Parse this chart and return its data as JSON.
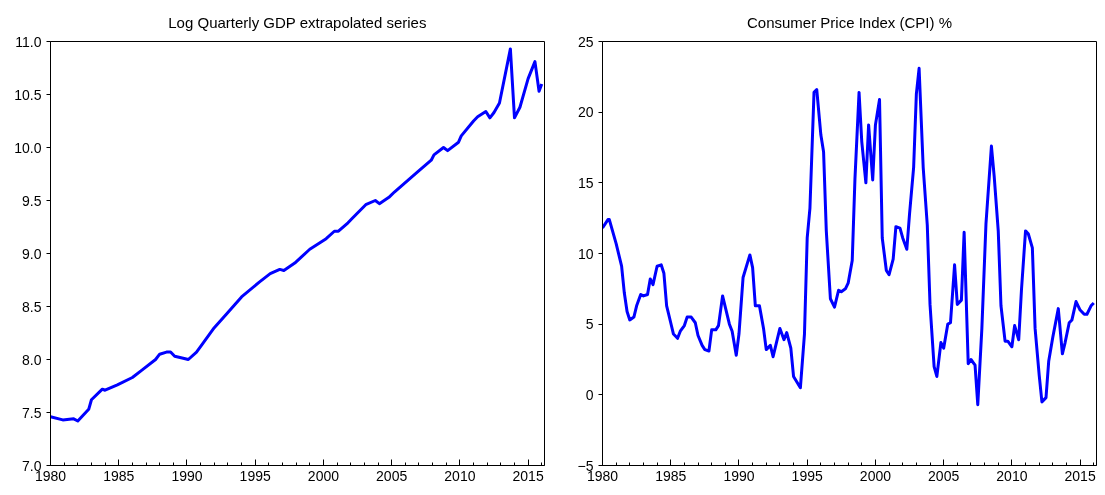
{
  "chart_data": [
    {
      "type": "line",
      "title": "Log Quarterly GDP extrapolated series",
      "grid": false,
      "marker": "none",
      "line_style": "solid",
      "xlim": [
        1980,
        2016.2
      ],
      "xticks": [
        1980,
        1985,
        1990,
        1995,
        2000,
        2005,
        2010,
        2015
      ],
      "ylim": [
        7.0,
        11.0
      ],
      "yticks": [
        {
          "value": 7.0,
          "label": "7.0"
        },
        7.5,
        {
          "value": 8.0,
          "label": "8.0"
        },
        8.5,
        {
          "value": 9.0,
          "label": "9.0"
        },
        9.5,
        {
          "value": 10.0,
          "label": "10.0"
        },
        10.5,
        {
          "value": 11.0,
          "label": "11.0"
        }
      ],
      "series": [
        {
          "color": "#0000ff",
          "x": [
            1980.0,
            1980.9,
            1981.7,
            1982.0,
            1982.8,
            1983.0,
            1983.8,
            1984.0,
            1984.9,
            1986.0,
            1986.7,
            1987.7,
            1988.0,
            1988.5,
            1988.8,
            1989.1,
            1989.8,
            1990.1,
            1990.7,
            1991.1,
            1992.0,
            1992.9,
            1994.0,
            1995.3,
            1996.1,
            1996.8,
            1997.1,
            1997.9,
            1999.0,
            2000.2,
            2000.8,
            2001.1,
            2001.8,
            2002.1,
            2003.1,
            2003.8,
            2004.1,
            2004.8,
            2005.2,
            2006.9,
            2007.9,
            2008.1,
            2008.8,
            2009.1,
            2009.9,
            2010.1,
            2011.0,
            2011.3,
            2011.9,
            2012.2,
            2012.5,
            2012.9,
            2013.7,
            2014.0,
            2014.4,
            2015.0,
            2015.5,
            2015.8,
            2016.0
          ],
          "values": [
            7.46,
            7.43,
            7.44,
            7.42,
            7.53,
            7.62,
            7.72,
            7.71,
            7.76,
            7.83,
            7.9,
            8.0,
            8.05,
            8.07,
            8.07,
            8.03,
            8.01,
            8.0,
            8.07,
            8.14,
            8.3,
            8.43,
            8.59,
            8.73,
            8.81,
            8.85,
            8.84,
            8.91,
            9.04,
            9.14,
            9.21,
            9.21,
            9.29,
            9.33,
            9.46,
            9.5,
            9.47,
            9.53,
            9.58,
            9.77,
            9.88,
            9.93,
            10.0,
            9.97,
            10.05,
            10.11,
            10.25,
            10.29,
            10.34,
            10.28,
            10.33,
            10.42,
            10.93,
            10.28,
            10.38,
            10.65,
            10.81,
            10.53,
            10.6
          ]
        }
      ]
    },
    {
      "type": "line",
      "title": "Consumer Price Index (CPI) %",
      "grid": false,
      "marker": "none",
      "line_style": "solid",
      "xlim": [
        1980,
        2016.2
      ],
      "xticks": [
        1980,
        1985,
        1990,
        1995,
        2000,
        2005,
        2010,
        2015
      ],
      "ylim": [
        -5,
        25
      ],
      "yticks": [
        -5,
        0,
        5,
        10,
        15,
        20,
        25
      ],
      "series": [
        {
          "color": "#0000ff",
          "x": [
            1980.0,
            1980.4,
            1980.5,
            1981.0,
            1981.4,
            1981.6,
            1981.8,
            1982.0,
            1982.3,
            1982.5,
            1982.8,
            1983.0,
            1983.3,
            1983.5,
            1983.7,
            1984.0,
            1984.3,
            1984.5,
            1984.7,
            1985.0,
            1985.2,
            1985.5,
            1985.7,
            1986.0,
            1986.2,
            1986.5,
            1986.8,
            1987.0,
            1987.3,
            1987.5,
            1987.8,
            1988.0,
            1988.3,
            1988.5,
            1988.8,
            1989.1,
            1989.3,
            1989.5,
            1989.8,
            1990.0,
            1990.3,
            1990.8,
            1991.0,
            1991.2,
            1991.5,
            1991.8,
            1992.0,
            1992.3,
            1992.5,
            1992.8,
            1993.0,
            1993.3,
            1993.5,
            1993.8,
            1994.0,
            1994.5,
            1994.8,
            1995.0,
            1995.2,
            1995.5,
            1995.7,
            1996.0,
            1996.2,
            1996.4,
            1996.7,
            1997.0,
            1997.3,
            1997.5,
            1997.8,
            1998.0,
            1998.3,
            1998.5,
            1998.8,
            1999.0,
            1999.3,
            1999.5,
            1999.8,
            2000.0,
            2000.3,
            2000.5,
            2000.8,
            2001.0,
            2001.3,
            2001.5,
            2001.8,
            2002.0,
            2002.3,
            2002.5,
            2002.8,
            2003.0,
            2003.2,
            2003.5,
            2003.8,
            2004.0,
            2004.3,
            2004.5,
            2004.8,
            2005.0,
            2005.3,
            2005.5,
            2005.8,
            2006.0,
            2006.3,
            2006.5,
            2006.8,
            2007.0,
            2007.3,
            2007.5,
            2007.8,
            2008.1,
            2008.5,
            2008.7,
            2009.0,
            2009.2,
            2009.5,
            2009.7,
            2010.0,
            2010.2,
            2010.5,
            2010.7,
            2011.0,
            2011.2,
            2011.5,
            2011.7,
            2012.0,
            2012.2,
            2012.5,
            2012.7,
            2013.0,
            2013.4,
            2013.7,
            2013.9,
            2014.2,
            2014.4,
            2014.7,
            2015.0,
            2015.3,
            2015.5,
            2015.8,
            2016.0
          ],
          "values": [
            11.8,
            12.4,
            12.4,
            10.7,
            9.1,
            7.2,
            5.9,
            5.3,
            5.5,
            6.3,
            7.1,
            7.0,
            7.1,
            8.2,
            7.8,
            9.1,
            9.2,
            8.6,
            6.3,
            5.1,
            4.3,
            4.0,
            4.5,
            4.9,
            5.5,
            5.5,
            5.1,
            4.2,
            3.5,
            3.2,
            3.1,
            4.6,
            4.6,
            4.9,
            7.0,
            5.8,
            5.0,
            4.5,
            2.8,
            4.3,
            8.3,
            9.9,
            9.0,
            6.3,
            6.3,
            4.7,
            3.2,
            3.5,
            2.7,
            3.9,
            4.7,
            3.9,
            4.4,
            3.3,
            1.3,
            0.5,
            4.3,
            11.1,
            13.2,
            21.4,
            21.6,
            18.4,
            17.2,
            11.6,
            6.8,
            6.2,
            7.4,
            7.3,
            7.5,
            7.9,
            9.5,
            15.3,
            21.4,
            17.9,
            15.0,
            19.1,
            15.2,
            19.1,
            20.9,
            11.1,
            8.8,
            8.5,
            9.6,
            11.9,
            11.8,
            11.1,
            10.3,
            12.8,
            16.1,
            21.3,
            23.1,
            16.1,
            12.0,
            6.4,
            2.0,
            1.3,
            3.7,
            3.3,
            5.0,
            5.1,
            9.2,
            6.4,
            6.7,
            11.5,
            2.2,
            2.5,
            2.1,
            -0.7,
            4.7,
            12.1,
            17.6,
            15.5,
            11.6,
            6.3,
            3.8,
            3.8,
            3.4,
            4.9,
            3.9,
            7.4,
            11.6,
            11.4,
            10.4,
            4.7,
            1.4,
            -0.5,
            -0.2,
            2.4,
            4.1,
            6.1,
            2.9,
            3.7,
            5.1,
            5.3,
            6.6,
            6.0,
            5.7,
            5.7,
            6.3,
            6.5
          ]
        }
      ]
    }
  ]
}
